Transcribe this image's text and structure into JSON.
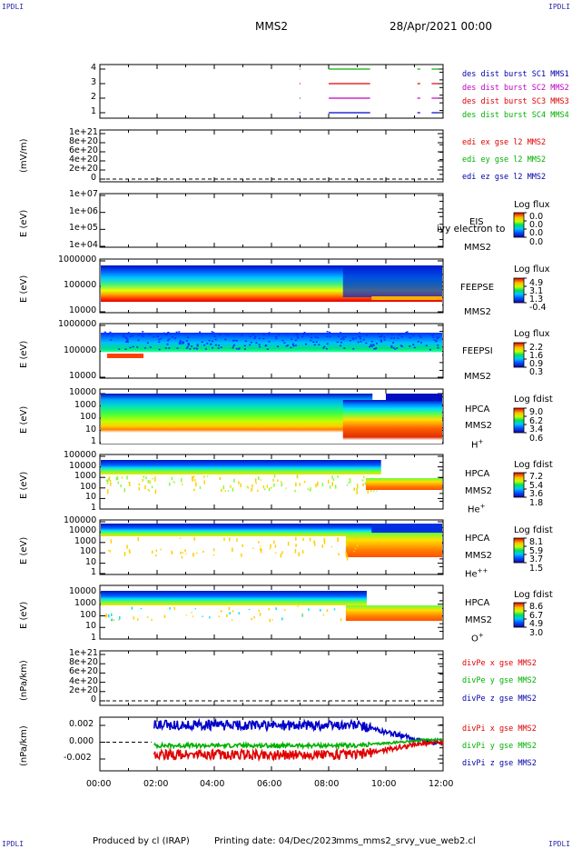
{
  "corners": {
    "tl": "IPDLI",
    "tr": "IPDLI",
    "bl": "IPDLI",
    "br": "IPDLI"
  },
  "header": {
    "spacecraft": "MMS2",
    "date": "28/Apr/2021 00:00"
  },
  "footer": {
    "produced_by": "Produced by cl (IRAP)",
    "printing_date": "Printing date: 04/Dec/2023",
    "filename": "mms_mms2_srvy_vue_web2.cl"
  },
  "x_axis": {
    "tick_labels": [
      "00:00",
      "02:00",
      "04:00",
      "06:00",
      "08:00",
      "10:00",
      "12:00"
    ]
  },
  "colors": {
    "red": "#e00000",
    "green": "#00b000",
    "blue": "#0000c8",
    "magenta": "#c000c0",
    "legend_blue": "#0000aa",
    "corner": "#2a2aa8"
  },
  "panels": {
    "burst": {
      "y_ticks": [
        "4",
        "3",
        "2",
        "1"
      ],
      "legend": [
        "des dist burst SC1 MMS1",
        "des dist burst SC2 MMS2",
        "des dist burst SC3 MMS3",
        "des dist burst SC4 MMS4"
      ]
    },
    "edi": {
      "ylabel": "(mV/m)",
      "y_ticks": [
        "1e+21",
        "8e+20",
        "6e+20",
        "4e+20",
        "2e+20",
        "0"
      ],
      "legend": [
        "edi ex gse l2 MMS2",
        "edi ey gse l2 MMS2",
        "edi ez gse l2 MMS2"
      ]
    },
    "eis": {
      "ylabel": "E (eV)",
      "y_ticks": [
        "1e+07",
        "1e+06",
        "1e+05",
        "1e+04"
      ],
      "inst": "EIS",
      "sc": "MMS2",
      "overlap": "ivy electron to",
      "cb_title": "Log flux",
      "cb_ticks": [
        "0.0",
        "0.0",
        "0.0",
        "0.0"
      ]
    },
    "feepse": {
      "ylabel": "E (eV)",
      "y_ticks": [
        "1000000",
        "100000",
        "10000"
      ],
      "inst": "FEEPSE",
      "sc": "MMS2",
      "cb_title": "Log flux",
      "cb_ticks": [
        "4.9",
        "3.1",
        "1.3",
        "-0.4"
      ]
    },
    "feepsi": {
      "ylabel": "E (eV)",
      "y_ticks": [
        "1000000",
        "100000",
        "10000"
      ],
      "inst": "FEEPSI",
      "sc": "MMS2",
      "cb_title": "Log flux",
      "cb_ticks": [
        "2.2",
        "1.6",
        "0.9",
        "0.3"
      ]
    },
    "hpca_h": {
      "ylabel": "E (eV)",
      "y_ticks": [
        "10000",
        "1000",
        "100",
        "10",
        "1"
      ],
      "inst": "HPCA",
      "sc": "MMS2",
      "species": "H",
      "charge": "+",
      "cb_title": "Log fdist",
      "cb_ticks": [
        "9.0",
        "6.2",
        "3.4",
        "0.6"
      ]
    },
    "hpca_he": {
      "ylabel": "E (eV)",
      "y_ticks": [
        "100000",
        "10000",
        "1000",
        "100",
        "10",
        "1"
      ],
      "inst": "HPCA",
      "sc": "MMS2",
      "species": "He",
      "charge": "+",
      "cb_title": "Log fdist",
      "cb_ticks": [
        "7.2",
        "5.4",
        "3.6",
        "1.8"
      ]
    },
    "hpca_hepp": {
      "ylabel": "E (eV)",
      "y_ticks": [
        "100000",
        "10000",
        "1000",
        "100",
        "10",
        "1"
      ],
      "inst": "HPCA",
      "sc": "MMS2",
      "species": "He",
      "charge": "++",
      "cb_title": "Log fdist",
      "cb_ticks": [
        "8.1",
        "5.9",
        "3.7",
        "1.5"
      ]
    },
    "hpca_o": {
      "ylabel": "E (eV)",
      "y_ticks": [
        "10000",
        "1000",
        "100",
        "10",
        "1"
      ],
      "inst": "HPCA",
      "sc": "MMS2",
      "species": "O",
      "charge": "+",
      "cb_title": "Log fdist",
      "cb_ticks": [
        "8.6",
        "6.7",
        "4.9",
        "3.0"
      ]
    },
    "divpe": {
      "ylabel": "(nPa/km)",
      "y_ticks": [
        "1e+21",
        "8e+20",
        "6e+20",
        "4e+20",
        "2e+20",
        "0"
      ],
      "legend": [
        "divPe x gse MMS2",
        "divPe y gse MMS2",
        "divPe z gse MMS2"
      ]
    },
    "divpi": {
      "ylabel": "(nPa/km)",
      "y_ticks": [
        "0.002",
        "0.000",
        "-0.002"
      ],
      "legend": [
        "divPi x gse MMS2",
        "divPi y gse MMS2",
        "divPi z gse MMS2"
      ]
    }
  },
  "chart_data": {
    "type": "line",
    "title": "MMS2",
    "x_range": [
      "00:00",
      "12:00"
    ],
    "burst_intervals_approx": [
      {
        "start": "08:00",
        "end": "09:30"
      },
      {
        "start": "11:30",
        "end": "11:50"
      }
    ],
    "divPi_series": [
      {
        "name": "divPi x gse MMS2",
        "mean_start": -0.0015,
        "mean_end": 0.0
      },
      {
        "name": "divPi y gse MMS2",
        "mean_start": -0.0004,
        "mean_end": 0.0003
      },
      {
        "name": "divPi z gse MMS2",
        "mean_start": 0.002,
        "mean_end": 0.0
      }
    ],
    "divPi_ylim": [
      -0.003,
      0.003
    ]
  }
}
